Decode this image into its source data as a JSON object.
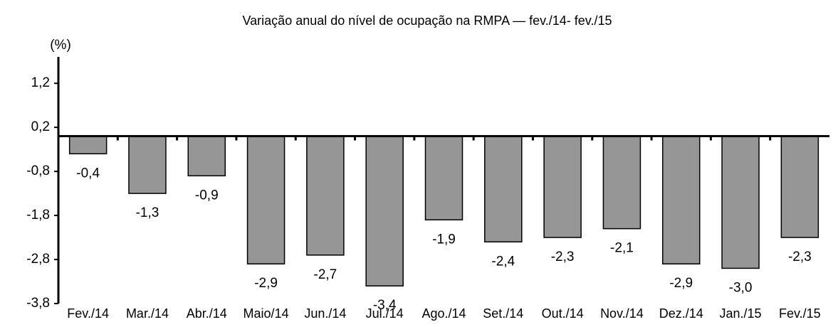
{
  "chart_data": {
    "type": "bar",
    "title": "Variação anual do nível de ocupação na RMPA — fev./14- fev./15",
    "y_label": "(%)",
    "categories": [
      "Fev./14",
      "Mar./14",
      "Abr./14",
      "Maio/14",
      "Jun./14",
      "Jul./14",
      "Ago./14",
      "Set./14",
      "Out./14",
      "Nov./14",
      "Dez./14",
      "Jan./15",
      "Fev./15"
    ],
    "values": [
      -0.4,
      -1.3,
      -0.9,
      -2.9,
      -2.7,
      -3.4,
      -1.9,
      -2.4,
      -2.3,
      -2.1,
      -2.9,
      -3.0,
      -2.3
    ],
    "value_labels": [
      "-0,4",
      "-1,3",
      "-0,9",
      "-2,9",
      "-2,7",
      "-3,4",
      "-1,9",
      "-2,4",
      "-2,3",
      "-2,1",
      "-2,9",
      "-3,0",
      "-2,3"
    ],
    "color": "#969696",
    "ylim": [
      -3.8,
      1.8
    ],
    "yticks": [
      {
        "value": -3.8,
        "label": "-3,8"
      },
      {
        "value": -2.8,
        "label": "-2,8"
      },
      {
        "value": -1.8,
        "label": "-1,8"
      },
      {
        "value": -0.8,
        "label": "-0,8"
      },
      {
        "value": 0.2,
        "label": "0,2"
      },
      {
        "value": 1.2,
        "label": "1,2"
      }
    ],
    "grid": false
  }
}
